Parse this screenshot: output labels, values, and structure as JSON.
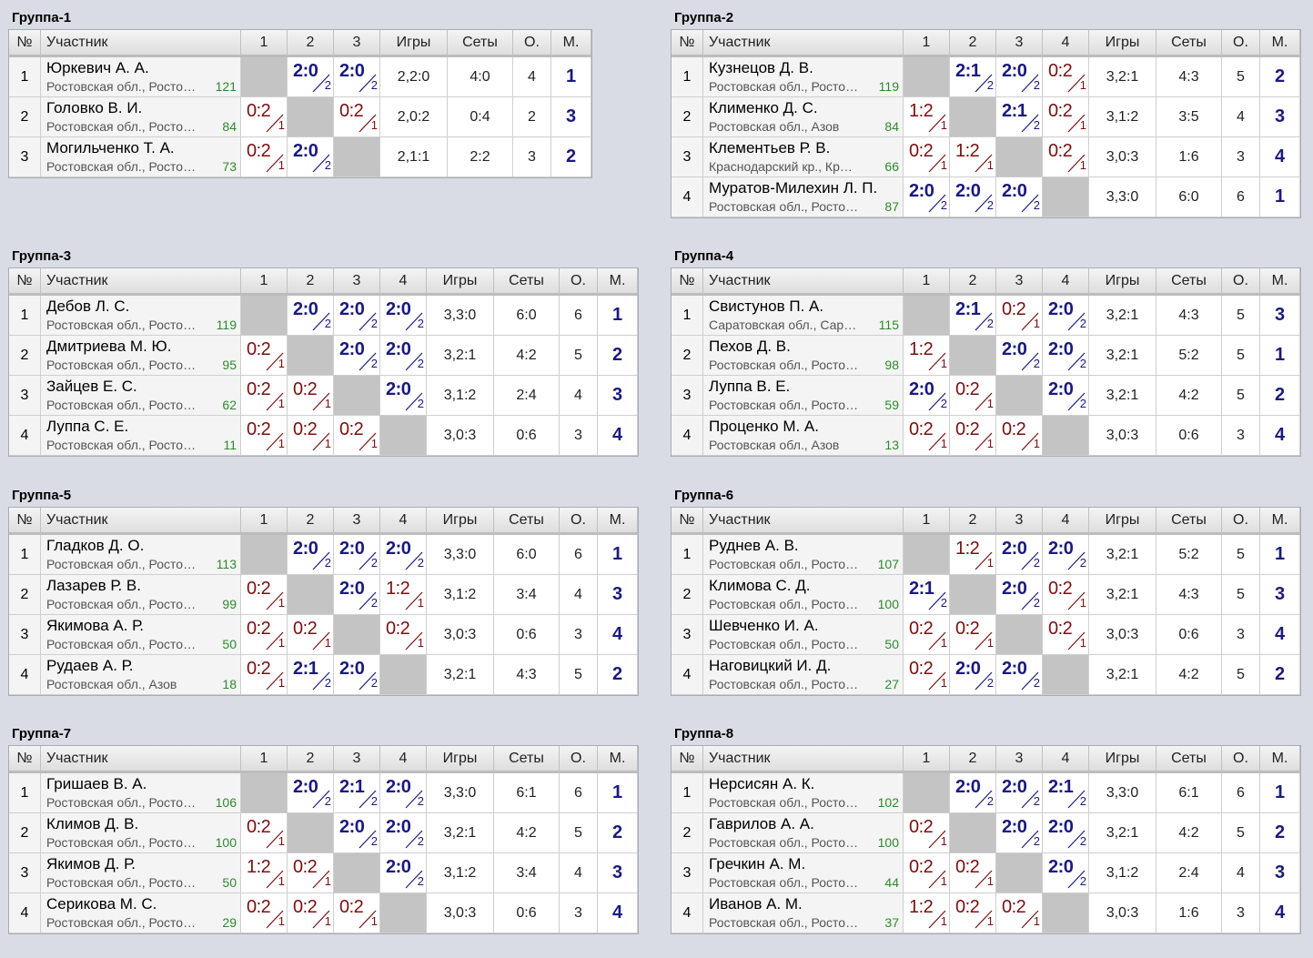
{
  "headers": {
    "num": "№",
    "name": "Участник",
    "games": "Игры",
    "sets": "Сеты",
    "points": "О.",
    "place": "М."
  },
  "groups": [
    {
      "title": "Группа-1",
      "players": [
        {
          "num": "1",
          "name": "Юркевич А. А.",
          "region": "Ростовская обл., Ростов-на-Дону",
          "rating": "121",
          "results": [
            null,
            {
              "s": "2:0",
              "r": "2",
              "w": true
            },
            {
              "s": "2:0",
              "r": "2",
              "w": true
            }
          ],
          "games": "2,2:0",
          "sets": "4:0",
          "points": "4",
          "place": "1"
        },
        {
          "num": "2",
          "name": "Головко В. И.",
          "region": "Ростовская обл., Ростов-на-Дону",
          "rating": "84",
          "results": [
            {
              "s": "0:2",
              "r": "1",
              "w": false
            },
            null,
            {
              "s": "0:2",
              "r": "1",
              "w": false
            }
          ],
          "games": "2,0:2",
          "sets": "0:4",
          "points": "2",
          "place": "3"
        },
        {
          "num": "3",
          "name": "Могильченко Т. А.",
          "region": "Ростовская обл., Ростов-на-Дону",
          "rating": "73",
          "results": [
            {
              "s": "0:2",
              "r": "1",
              "w": false
            },
            {
              "s": "2:0",
              "r": "2",
              "w": true
            },
            null
          ],
          "games": "2,1:1",
          "sets": "2:2",
          "points": "3",
          "place": "2"
        }
      ]
    },
    {
      "title": "Группа-2",
      "players": [
        {
          "num": "1",
          "name": "Кузнецов Д. В.",
          "region": "Ростовская обл., Ростов-на-Дону",
          "rating": "119",
          "results": [
            null,
            {
              "s": "2:1",
              "r": "2",
              "w": true
            },
            {
              "s": "2:0",
              "r": "2",
              "w": true
            },
            {
              "s": "0:2",
              "r": "1",
              "w": false
            }
          ],
          "games": "3,2:1",
          "sets": "4:3",
          "points": "5",
          "place": "2"
        },
        {
          "num": "2",
          "name": "Клименко Д. С.",
          "region": "Ростовская обл., Азов",
          "rating": "84",
          "results": [
            {
              "s": "1:2",
              "r": "1",
              "w": false
            },
            null,
            {
              "s": "2:1",
              "r": "2",
              "w": true
            },
            {
              "s": "0:2",
              "r": "1",
              "w": false
            }
          ],
          "games": "3,1:2",
          "sets": "3:5",
          "points": "4",
          "place": "3"
        },
        {
          "num": "3",
          "name": "Клементьев Р. В.",
          "region": "Краснодарский кр., Краснодар",
          "rating": "66",
          "results": [
            {
              "s": "0:2",
              "r": "1",
              "w": false
            },
            {
              "s": "1:2",
              "r": "1",
              "w": false
            },
            null,
            {
              "s": "0:2",
              "r": "1",
              "w": false
            }
          ],
          "games": "3,0:3",
          "sets": "1:6",
          "points": "3",
          "place": "4"
        },
        {
          "num": "4",
          "name": "Муратов-Милехин Л. П.",
          "region": "Ростовская обл., Ростов-на-Дону",
          "rating": "87",
          "results": [
            {
              "s": "2:0",
              "r": "2",
              "w": true
            },
            {
              "s": "2:0",
              "r": "2",
              "w": true
            },
            {
              "s": "2:0",
              "r": "2",
              "w": true
            },
            null
          ],
          "games": "3,3:0",
          "sets": "6:0",
          "points": "6",
          "place": "1"
        }
      ]
    },
    {
      "title": "Группа-3",
      "players": [
        {
          "num": "1",
          "name": "Дебов Л. С.",
          "region": "Ростовская обл., Ростов-на-Дону",
          "rating": "119",
          "results": [
            null,
            {
              "s": "2:0",
              "r": "2",
              "w": true
            },
            {
              "s": "2:0",
              "r": "2",
              "w": true
            },
            {
              "s": "2:0",
              "r": "2",
              "w": true
            }
          ],
          "games": "3,3:0",
          "sets": "6:0",
          "points": "6",
          "place": "1"
        },
        {
          "num": "2",
          "name": "Дмитриева М. Ю.",
          "region": "Ростовская обл., Ростов-на-Дону",
          "rating": "95",
          "results": [
            {
              "s": "0:2",
              "r": "1",
              "w": false
            },
            null,
            {
              "s": "2:0",
              "r": "2",
              "w": true
            },
            {
              "s": "2:0",
              "r": "2",
              "w": true
            }
          ],
          "games": "3,2:1",
          "sets": "4:2",
          "points": "5",
          "place": "2"
        },
        {
          "num": "3",
          "name": "Зайцев Е. С.",
          "region": "Ростовская обл., Ростов-на-Дону",
          "rating": "62",
          "results": [
            {
              "s": "0:2",
              "r": "1",
              "w": false
            },
            {
              "s": "0:2",
              "r": "1",
              "w": false
            },
            null,
            {
              "s": "2:0",
              "r": "2",
              "w": true
            }
          ],
          "games": "3,1:2",
          "sets": "2:4",
          "points": "4",
          "place": "3"
        },
        {
          "num": "4",
          "name": "Луппа С. Е.",
          "region": "Ростовская обл., Ростов-на-Дону",
          "rating": "11",
          "results": [
            {
              "s": "0:2",
              "r": "1",
              "w": false
            },
            {
              "s": "0:2",
              "r": "1",
              "w": false
            },
            {
              "s": "0:2",
              "r": "1",
              "w": false
            },
            null
          ],
          "games": "3,0:3",
          "sets": "0:6",
          "points": "3",
          "place": "4"
        }
      ]
    },
    {
      "title": "Группа-4",
      "players": [
        {
          "num": "1",
          "name": "Свистунов П. А.",
          "region": "Саратовская обл., Саратов",
          "rating": "115",
          "results": [
            null,
            {
              "s": "2:1",
              "r": "2",
              "w": true
            },
            {
              "s": "0:2",
              "r": "1",
              "w": false
            },
            {
              "s": "2:0",
              "r": "2",
              "w": true
            }
          ],
          "games": "3,2:1",
          "sets": "4:3",
          "points": "5",
          "place": "3"
        },
        {
          "num": "2",
          "name": "Пехов Д. В.",
          "region": "Ростовская обл., Ростов-на-Дону",
          "rating": "98",
          "results": [
            {
              "s": "1:2",
              "r": "1",
              "w": false
            },
            null,
            {
              "s": "2:0",
              "r": "2",
              "w": true
            },
            {
              "s": "2:0",
              "r": "2",
              "w": true
            }
          ],
          "games": "3,2:1",
          "sets": "5:2",
          "points": "5",
          "place": "1"
        },
        {
          "num": "3",
          "name": "Луппа В. Е.",
          "region": "Ростовская обл., Ростов-на-Дону",
          "rating": "59",
          "results": [
            {
              "s": "2:0",
              "r": "2",
              "w": true
            },
            {
              "s": "0:2",
              "r": "1",
              "w": false
            },
            null,
            {
              "s": "2:0",
              "r": "2",
              "w": true
            }
          ],
          "games": "3,2:1",
          "sets": "4:2",
          "points": "5",
          "place": "2"
        },
        {
          "num": "4",
          "name": "Проценко М. А.",
          "region": "Ростовская обл., Азов",
          "rating": "13",
          "results": [
            {
              "s": "0:2",
              "r": "1",
              "w": false
            },
            {
              "s": "0:2",
              "r": "1",
              "w": false
            },
            {
              "s": "0:2",
              "r": "1",
              "w": false
            },
            null
          ],
          "games": "3,0:3",
          "sets": "0:6",
          "points": "3",
          "place": "4"
        }
      ]
    },
    {
      "title": "Группа-5",
      "players": [
        {
          "num": "1",
          "name": "Гладков Д. О.",
          "region": "Ростовская обл., Ростов-на-Дону",
          "rating": "113",
          "results": [
            null,
            {
              "s": "2:0",
              "r": "2",
              "w": true
            },
            {
              "s": "2:0",
              "r": "2",
              "w": true
            },
            {
              "s": "2:0",
              "r": "2",
              "w": true
            }
          ],
          "games": "3,3:0",
          "sets": "6:0",
          "points": "6",
          "place": "1"
        },
        {
          "num": "2",
          "name": "Лазарев Р. В.",
          "region": "Ростовская обл., Ростов-на-Дону",
          "rating": "99",
          "results": [
            {
              "s": "0:2",
              "r": "1",
              "w": false
            },
            null,
            {
              "s": "2:0",
              "r": "2",
              "w": true
            },
            {
              "s": "1:2",
              "r": "1",
              "w": false
            }
          ],
          "games": "3,1:2",
          "sets": "3:4",
          "points": "4",
          "place": "3"
        },
        {
          "num": "3",
          "name": "Якимова А. Р.",
          "region": "Ростовская обл., Ростов-на-Дону",
          "rating": "50",
          "results": [
            {
              "s": "0:2",
              "r": "1",
              "w": false
            },
            {
              "s": "0:2",
              "r": "1",
              "w": false
            },
            null,
            {
              "s": "0:2",
              "r": "1",
              "w": false
            }
          ],
          "games": "3,0:3",
          "sets": "0:6",
          "points": "3",
          "place": "4"
        },
        {
          "num": "4",
          "name": "Рудаев А. Р.",
          "region": "Ростовская обл., Азов",
          "rating": "18",
          "results": [
            {
              "s": "0:2",
              "r": "1",
              "w": false
            },
            {
              "s": "2:1",
              "r": "2",
              "w": true
            },
            {
              "s": "2:0",
              "r": "2",
              "w": true
            },
            null
          ],
          "games": "3,2:1",
          "sets": "4:3",
          "points": "5",
          "place": "2"
        }
      ]
    },
    {
      "title": "Группа-6",
      "players": [
        {
          "num": "1",
          "name": "Руднев А. В.",
          "region": "Ростовская обл., Ростов-на-Дону",
          "rating": "107",
          "results": [
            null,
            {
              "s": "1:2",
              "r": "1",
              "w": false
            },
            {
              "s": "2:0",
              "r": "2",
              "w": true
            },
            {
              "s": "2:0",
              "r": "2",
              "w": true
            }
          ],
          "games": "3,2:1",
          "sets": "5:2",
          "points": "5",
          "place": "1"
        },
        {
          "num": "2",
          "name": "Климова С. Д.",
          "region": "Ростовская обл., Ростов-на-Дону",
          "rating": "100",
          "results": [
            {
              "s": "2:1",
              "r": "2",
              "w": true
            },
            null,
            {
              "s": "2:0",
              "r": "2",
              "w": true
            },
            {
              "s": "0:2",
              "r": "1",
              "w": false
            }
          ],
          "games": "3,2:1",
          "sets": "4:3",
          "points": "5",
          "place": "3"
        },
        {
          "num": "3",
          "name": "Шевченко И. А.",
          "region": "Ростовская обл., Ростов-на-Дону",
          "rating": "50",
          "results": [
            {
              "s": "0:2",
              "r": "1",
              "w": false
            },
            {
              "s": "0:2",
              "r": "1",
              "w": false
            },
            null,
            {
              "s": "0:2",
              "r": "1",
              "w": false
            }
          ],
          "games": "3,0:3",
          "sets": "0:6",
          "points": "3",
          "place": "4"
        },
        {
          "num": "4",
          "name": "Наговицкий И. Д.",
          "region": "Ростовская обл., Ростов-на-Дону",
          "rating": "27",
          "results": [
            {
              "s": "0:2",
              "r": "1",
              "w": false
            },
            {
              "s": "2:0",
              "r": "2",
              "w": true
            },
            {
              "s": "2:0",
              "r": "2",
              "w": true
            },
            null
          ],
          "games": "3,2:1",
          "sets": "4:2",
          "points": "5",
          "place": "2"
        }
      ]
    },
    {
      "title": "Группа-7",
      "players": [
        {
          "num": "1",
          "name": "Гришаев В. А.",
          "region": "Ростовская обл., Ростов-на-Дону",
          "rating": "106",
          "results": [
            null,
            {
              "s": "2:0",
              "r": "2",
              "w": true
            },
            {
              "s": "2:1",
              "r": "2",
              "w": true
            },
            {
              "s": "2:0",
              "r": "2",
              "w": true
            }
          ],
          "games": "3,3:0",
          "sets": "6:1",
          "points": "6",
          "place": "1"
        },
        {
          "num": "2",
          "name": "Климов Д. В.",
          "region": "Ростовская обл., Ростов-на-Дону",
          "rating": "100",
          "results": [
            {
              "s": "0:2",
              "r": "1",
              "w": false
            },
            null,
            {
              "s": "2:0",
              "r": "2",
              "w": true
            },
            {
              "s": "2:0",
              "r": "2",
              "w": true
            }
          ],
          "games": "3,2:1",
          "sets": "4:2",
          "points": "5",
          "place": "2"
        },
        {
          "num": "3",
          "name": "Якимов Д. Р.",
          "region": "Ростовская обл., Ростов-на-Дону",
          "rating": "50",
          "results": [
            {
              "s": "1:2",
              "r": "1",
              "w": false
            },
            {
              "s": "0:2",
              "r": "1",
              "w": false
            },
            null,
            {
              "s": "2:0",
              "r": "2",
              "w": true
            }
          ],
          "games": "3,1:2",
          "sets": "3:4",
          "points": "4",
          "place": "3"
        },
        {
          "num": "4",
          "name": "Серикова М. С.",
          "region": "Ростовская обл., Ростов-на-Дону",
          "rating": "29",
          "results": [
            {
              "s": "0:2",
              "r": "1",
              "w": false
            },
            {
              "s": "0:2",
              "r": "1",
              "w": false
            },
            {
              "s": "0:2",
              "r": "1",
              "w": false
            },
            null
          ],
          "games": "3,0:3",
          "sets": "0:6",
          "points": "3",
          "place": "4"
        }
      ]
    },
    {
      "title": "Группа-8",
      "players": [
        {
          "num": "1",
          "name": "Нерсисян А. К.",
          "region": "Ростовская обл., Ростов-на-Дону",
          "rating": "102",
          "results": [
            null,
            {
              "s": "2:0",
              "r": "2",
              "w": true
            },
            {
              "s": "2:0",
              "r": "2",
              "w": true
            },
            {
              "s": "2:1",
              "r": "2",
              "w": true
            }
          ],
          "games": "3,3:0",
          "sets": "6:1",
          "points": "6",
          "place": "1"
        },
        {
          "num": "2",
          "name": "Гаврилов А. А.",
          "region": "Ростовская обл., Ростов-на-Дону",
          "rating": "100",
          "results": [
            {
              "s": "0:2",
              "r": "1",
              "w": false
            },
            null,
            {
              "s": "2:0",
              "r": "2",
              "w": true
            },
            {
              "s": "2:0",
              "r": "2",
              "w": true
            }
          ],
          "games": "3,2:1",
          "sets": "4:2",
          "points": "5",
          "place": "2"
        },
        {
          "num": "3",
          "name": "Гречкин А. М.",
          "region": "Ростовская обл., Ростов-на-Дону",
          "rating": "44",
          "results": [
            {
              "s": "0:2",
              "r": "1",
              "w": false
            },
            {
              "s": "0:2",
              "r": "1",
              "w": false
            },
            null,
            {
              "s": "2:0",
              "r": "2",
              "w": true
            }
          ],
          "games": "3,1:2",
          "sets": "2:4",
          "points": "4",
          "place": "3"
        },
        {
          "num": "4",
          "name": "Иванов А. М.",
          "region": "Ростовская обл., Ростов-на-Дону",
          "rating": "37",
          "results": [
            {
              "s": "1:2",
              "r": "1",
              "w": false
            },
            {
              "s": "0:2",
              "r": "1",
              "w": false
            },
            {
              "s": "0:2",
              "r": "1",
              "w": false
            },
            null
          ],
          "games": "3,0:3",
          "sets": "1:6",
          "points": "3",
          "place": "4"
        }
      ]
    }
  ]
}
